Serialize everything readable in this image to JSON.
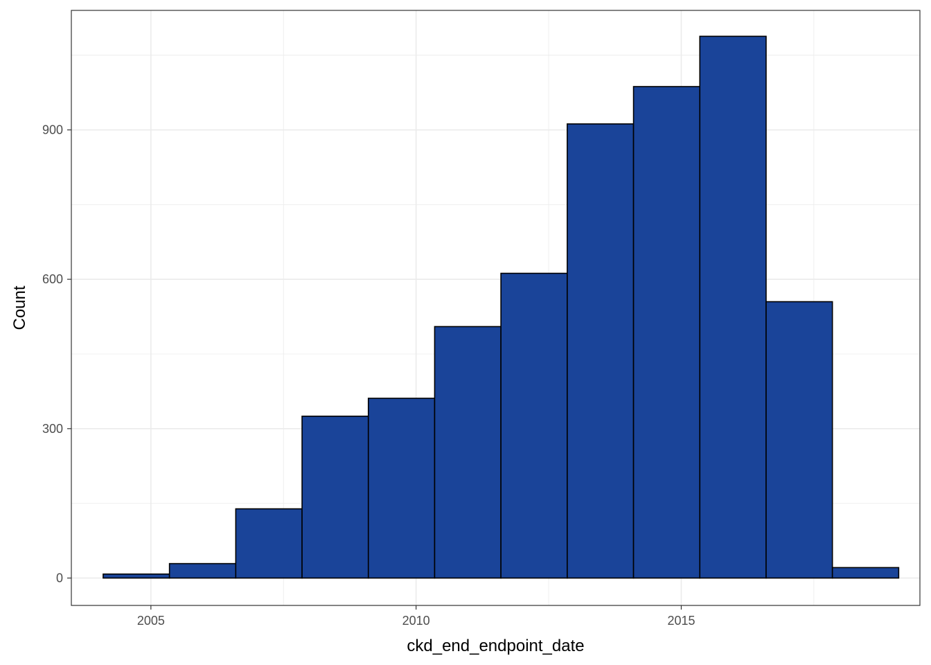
{
  "chart_data": {
    "type": "bar",
    "title": "",
    "xlabel": "ckd_end_endpoint_date",
    "ylabel": "Count",
    "grid": true,
    "legend": "none",
    "xlim": [
      2003.5,
      2019.5
    ],
    "ylim": [
      -55,
      1140
    ],
    "x_ticks": [
      {
        "value": 2005,
        "label": "2005"
      },
      {
        "value": 2010,
        "label": "2010"
      },
      {
        "value": 2015,
        "label": "2015"
      }
    ],
    "y_ticks": [
      {
        "value": 0,
        "label": "0"
      },
      {
        "value": 300,
        "label": "300"
      },
      {
        "value": 600,
        "label": "600"
      },
      {
        "value": 900,
        "label": "900"
      }
    ],
    "bins": [
      {
        "start": 2004.1,
        "end": 2005.35,
        "count": 8
      },
      {
        "start": 2005.35,
        "end": 2006.6,
        "count": 29
      },
      {
        "start": 2006.6,
        "end": 2007.85,
        "count": 139
      },
      {
        "start": 2007.85,
        "end": 2009.1,
        "count": 325
      },
      {
        "start": 2009.1,
        "end": 2010.35,
        "count": 361
      },
      {
        "start": 2010.35,
        "end": 2011.6,
        "count": 505
      },
      {
        "start": 2011.6,
        "end": 2012.85,
        "count": 612
      },
      {
        "start": 2012.85,
        "end": 2014.1,
        "count": 912
      },
      {
        "start": 2014.1,
        "end": 2015.35,
        "count": 987
      },
      {
        "start": 2015.35,
        "end": 2016.6,
        "count": 1088
      },
      {
        "start": 2016.6,
        "end": 2017.85,
        "count": 555
      },
      {
        "start": 2017.85,
        "end": 2019.1,
        "count": 21
      }
    ],
    "colors": {
      "bar_fill": "#1a4499",
      "bar_stroke": "#000000",
      "grid": "#ebebeb",
      "panel_border": "#333333"
    }
  }
}
